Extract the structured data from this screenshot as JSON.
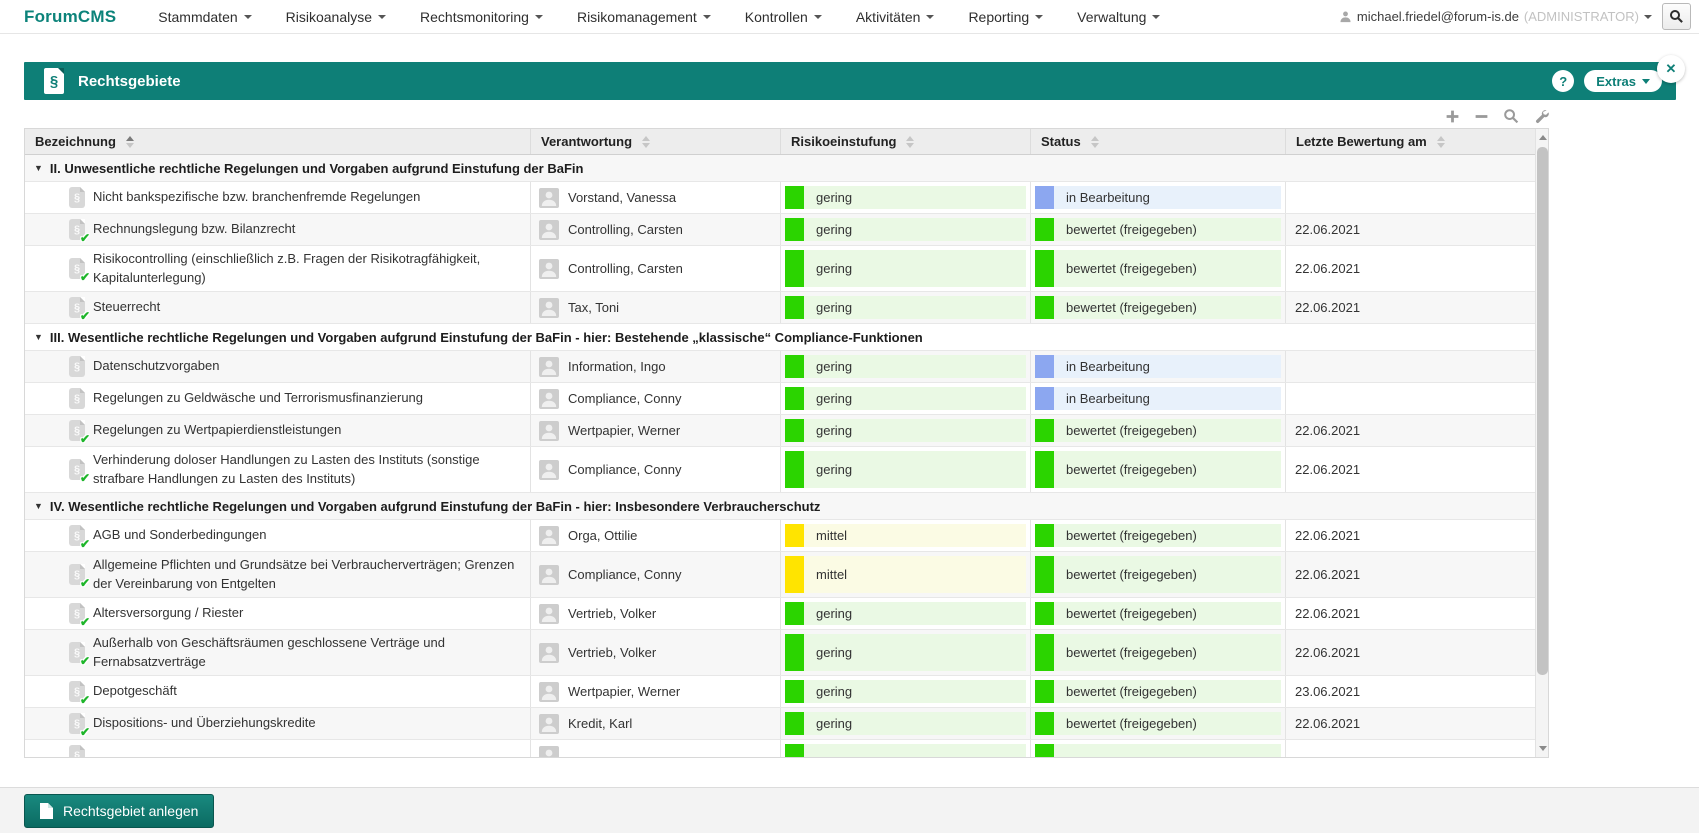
{
  "nav": {
    "logo": "ForumCMS",
    "items": [
      {
        "label": "Stammdaten"
      },
      {
        "label": "Risikoanalyse"
      },
      {
        "label": "Rechtsmonitoring"
      },
      {
        "label": "Risikomanagement"
      },
      {
        "label": "Kontrollen"
      },
      {
        "label": "Aktivitäten"
      },
      {
        "label": "Reporting"
      },
      {
        "label": "Verwaltung"
      }
    ],
    "user": {
      "email": "michael.friedel@forum-is.de",
      "role": "(ADMINISTRATOR)"
    },
    "icons": [
      "user-icon",
      "magnifier-icon"
    ]
  },
  "panel": {
    "title": "Rechtsgebiete",
    "icon": "paragraph-document-icon",
    "help_label": "?",
    "extras_label": "Extras",
    "close_label": "✕",
    "accent_color": "#0e7f77"
  },
  "toolbar": {
    "icons": [
      "plus-icon",
      "minus-icon",
      "magnifier-icon",
      "wrench-icon"
    ]
  },
  "table": {
    "columns": [
      {
        "label": "Bezeichnung",
        "sort": "asc"
      },
      {
        "label": "Verantwortung",
        "sort": "none"
      },
      {
        "label": "Risikoeinstufung",
        "sort": "none"
      },
      {
        "label": "Status",
        "sort": "none"
      },
      {
        "label": "Letzte Bewertung am",
        "sort": "none"
      }
    ],
    "risk_styles": {
      "gering": {
        "bar": "#2bd400",
        "bg": "#eaf9e4"
      },
      "mittel": {
        "bar": "#ffe400",
        "bg": "#fbfbe4"
      }
    },
    "status_styles": {
      "in Bearbeitung": {
        "bar": "#8ca7f0",
        "bg": "#e8f1fb"
      },
      "bewertet (freigegeben)": {
        "bar": "#2bd400",
        "bg": "#eaf9e4"
      }
    },
    "stripe_colors": {
      "odd": "#f7f7f7",
      "even": "#ffffff"
    },
    "groups": [
      {
        "label": "II. Unwesentliche rechtliche Regelungen und Vorgaben aufgrund Einstufung der BaFin",
        "rows": [
          {
            "name": "Nicht bankspezifische bzw. branchenfremde Regelungen",
            "checked": false,
            "owner": "Vorstand, Vanessa",
            "risk": "gering",
            "status": "in Bearbeitung",
            "date": ""
          },
          {
            "name": "Rechnungslegung bzw. Bilanzrecht",
            "checked": true,
            "owner": "Controlling, Carsten",
            "risk": "gering",
            "status": "bewertet (freigegeben)",
            "date": "22.06.2021"
          },
          {
            "name": "Risikocontrolling (einschließlich z.B. Fragen der Risikotragfähigkeit, Kapitalunterlegung)",
            "checked": true,
            "owner": "Controlling, Carsten",
            "risk": "gering",
            "status": "bewertet (freigegeben)",
            "date": "22.06.2021",
            "twoline": true
          },
          {
            "name": "Steuerrecht",
            "checked": true,
            "owner": "Tax, Toni",
            "risk": "gering",
            "status": "bewertet (freigegeben)",
            "date": "22.06.2021"
          }
        ]
      },
      {
        "label": "III. Wesentliche rechtliche Regelungen und Vorgaben aufgrund Einstufung der BaFin - hier: Bestehende „klassische“ Compliance-Funktionen",
        "rows": [
          {
            "name": "Datenschutzvorgaben",
            "checked": false,
            "owner": "Information, Ingo",
            "risk": "gering",
            "status": "in Bearbeitung",
            "date": ""
          },
          {
            "name": "Regelungen zu Geldwäsche und Terrorismusfinanzierung",
            "checked": false,
            "owner": "Compliance, Conny",
            "risk": "gering",
            "status": "in Bearbeitung",
            "date": ""
          },
          {
            "name": "Regelungen zu Wertpapierdienstleistungen",
            "checked": true,
            "owner": "Wertpapier, Werner",
            "risk": "gering",
            "status": "bewertet (freigegeben)",
            "date": "22.06.2021"
          },
          {
            "name": "Verhinderung doloser Handlungen zu Lasten des Instituts (sonstige strafbare Handlungen zu Lasten des Instituts)",
            "checked": true,
            "owner": "Compliance, Conny",
            "risk": "gering",
            "status": "bewertet (freigegeben)",
            "date": "22.06.2021",
            "twoline": true
          }
        ]
      },
      {
        "label": "IV. Wesentliche rechtliche Regelungen und Vorgaben aufgrund Einstufung der BaFin - hier: Insbesondere Verbraucherschutz",
        "rows": [
          {
            "name": "AGB und Sonderbedingungen",
            "checked": true,
            "owner": "Orga, Ottilie",
            "risk": "mittel",
            "status": "bewertet (freigegeben)",
            "date": "22.06.2021"
          },
          {
            "name": "Allgemeine Pflichten und Grundsätze bei Verbraucherverträgen; Grenzen der Vereinbarung von Entgelten",
            "checked": true,
            "owner": "Compliance, Conny",
            "risk": "mittel",
            "status": "bewertet (freigegeben)",
            "date": "22.06.2021",
            "twoline": true
          },
          {
            "name": "Altersversorgung / Riester",
            "checked": true,
            "owner": "Vertrieb, Volker",
            "risk": "gering",
            "status": "bewertet (freigegeben)",
            "date": "22.06.2021"
          },
          {
            "name": "Außerhalb von Geschäftsräumen geschlossene Verträge und Fernabsatzverträge",
            "checked": true,
            "owner": "Vertrieb, Volker",
            "risk": "gering",
            "status": "bewertet (freigegeben)",
            "date": "22.06.2021",
            "twoline": true
          },
          {
            "name": "Depotgeschäft",
            "checked": true,
            "owner": "Wertpapier, Werner",
            "risk": "gering",
            "status": "bewertet (freigegeben)",
            "date": "23.06.2021"
          },
          {
            "name": "Dispositions- und Überziehungskredite",
            "checked": true,
            "owner": "Kredit, Karl",
            "risk": "gering",
            "status": "bewertet (freigegeben)",
            "date": "22.06.2021"
          }
        ]
      }
    ],
    "partial_row": {
      "name": "",
      "checked": false,
      "owner": "",
      "risk": "gering",
      "status": "bewertet (freigegeben)",
      "date": ""
    }
  },
  "footer": {
    "create_button": "Rechtsgebiet anlegen"
  }
}
